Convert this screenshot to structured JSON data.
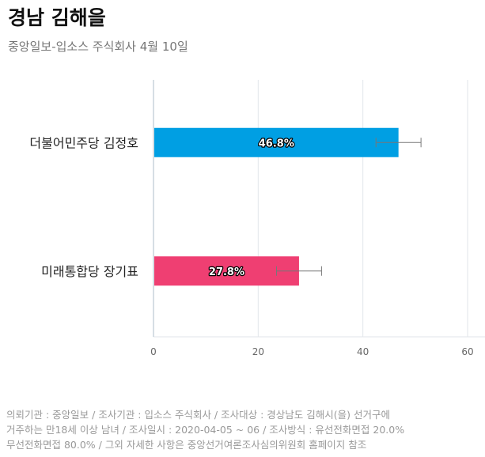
{
  "header": {
    "title": "경남 김해을",
    "subtitle": "중앙일보-입소스 주식회사 4월 10일"
  },
  "chart_data": {
    "type": "bar",
    "orientation": "horizontal",
    "categories": [
      "더불어민주당 김정호",
      "미래통합당 장기표"
    ],
    "values": [
      46.8,
      27.8
    ],
    "value_labels": [
      "46.8%",
      "27.8%"
    ],
    "error_bars": [
      [
        42.5,
        51.1
      ],
      [
        23.5,
        32.1
      ]
    ],
    "colors": [
      "#009fe3",
      "#ef3f72"
    ],
    "xlim": [
      0,
      60
    ],
    "x_ticks": [
      "0",
      "20",
      "40",
      "60"
    ],
    "x_tick_values": [
      0,
      20,
      40,
      60
    ],
    "grid": true
  },
  "footnote": {
    "lines": [
      "의뢰기관 : 중앙일보 / 조사기관 : 입소스 주식회사 / 조사대상 : 경상남도 김해시(을) 선거구에",
      "거주하는 만18세 이상 남녀 / 조사일시 : 2020-04-05 ~ 06 / 조사방식 : 유선전화면접 20.0%",
      "무선전화면접 80.0% / 그외 자세한 사항은 중앙선거여론조사심의위원회 홈페이지 참조"
    ]
  }
}
